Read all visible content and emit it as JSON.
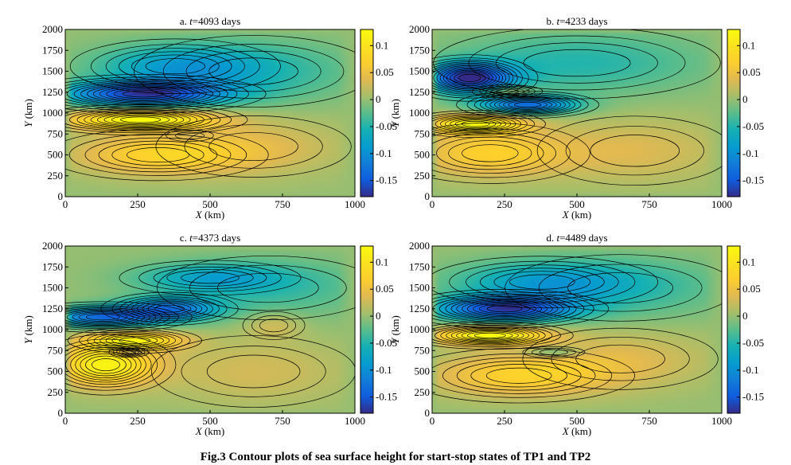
{
  "figure": {
    "caption": "Fig.3 Contour plots of sea surface height for start-stop states of TP1 and TP2"
  },
  "chart_data": [
    {
      "type": "heatmap",
      "panel": "a",
      "title_prefix": "a. ",
      "title_var": "t",
      "title_value": "=4093 days",
      "xlabel_var": "X",
      "xlabel_unit": " (km)",
      "ylabel_var": "Y",
      "ylabel_unit": " (km)",
      "xlim": [
        0,
        1000
      ],
      "ylim": [
        0,
        2000
      ],
      "xticks": [
        0,
        250,
        500,
        750,
        1000
      ],
      "yticks": [
        0,
        250,
        500,
        750,
        1000,
        1250,
        1500,
        1750,
        2000
      ],
      "colorbar": {
        "min": -0.18,
        "max": 0.13,
        "ticks": [
          0.1,
          0.05,
          0,
          -0.05,
          -0.1,
          -0.15
        ],
        "ticklabels": [
          "0.1",
          "0.05",
          "0",
          "-0.05",
          "-0.1",
          "-0.15"
        ]
      },
      "features": [
        {
          "x": 270,
          "y": 1230,
          "sx": 200,
          "sy": 110,
          "amp": -0.16
        },
        {
          "x": 380,
          "y": 1560,
          "sx": 200,
          "sy": 180,
          "amp": -0.07
        },
        {
          "x": 650,
          "y": 1500,
          "sx": 250,
          "sy": 260,
          "amp": -0.045
        },
        {
          "x": 260,
          "y": 920,
          "sx": 180,
          "sy": 90,
          "amp": 0.13
        },
        {
          "x": 320,
          "y": 500,
          "sx": 210,
          "sy": 170,
          "amp": 0.07
        },
        {
          "x": 650,
          "y": 600,
          "sx": 220,
          "sy": 240,
          "amp": 0.035
        },
        {
          "x": 430,
          "y": 730,
          "sx": 60,
          "sy": 50,
          "amp": -0.02
        }
      ]
    },
    {
      "type": "heatmap",
      "panel": "b",
      "title_prefix": "b. ",
      "title_var": "t",
      "title_value": "=4233 days",
      "xlabel_var": "X",
      "xlabel_unit": " (km)",
      "ylabel_var": "Y",
      "ylabel_unit": " (km)",
      "xlim": [
        0,
        1000
      ],
      "ylim": [
        0,
        2000
      ],
      "xticks": [
        0,
        250,
        500,
        750,
        1000
      ],
      "yticks": [
        0,
        250,
        500,
        750,
        1000,
        1250,
        1500,
        1750,
        2000
      ],
      "colorbar": {
        "min": -0.18,
        "max": 0.13,
        "ticks": [
          0.1,
          0.05,
          0,
          -0.05,
          -0.1,
          -0.15
        ],
        "ticklabels": [
          "0.1",
          "0.05",
          "0",
          "-0.05",
          "-0.1",
          "-0.15"
        ]
      },
      "features": [
        {
          "x": 130,
          "y": 1420,
          "sx": 110,
          "sy": 130,
          "amp": -0.17
        },
        {
          "x": 330,
          "y": 1100,
          "sx": 120,
          "sy": 80,
          "amp": -0.13
        },
        {
          "x": 260,
          "y": 1260,
          "sx": 70,
          "sy": 45,
          "amp": 0.06
        },
        {
          "x": 500,
          "y": 1600,
          "sx": 300,
          "sy": 260,
          "amp": -0.05
        },
        {
          "x": 150,
          "y": 870,
          "sx": 120,
          "sy": 80,
          "amp": 0.12
        },
        {
          "x": 200,
          "y": 520,
          "sx": 190,
          "sy": 200,
          "amp": 0.07
        },
        {
          "x": 700,
          "y": 550,
          "sx": 220,
          "sy": 270,
          "amp": 0.035
        }
      ]
    },
    {
      "type": "heatmap",
      "panel": "c",
      "title_prefix": "c. ",
      "title_var": "t",
      "title_value": "=4373 days",
      "xlabel_var": "X",
      "xlabel_unit": " (km)",
      "ylabel_var": "Y",
      "ylabel_unit": " (km)",
      "xlim": [
        0,
        1000
      ],
      "ylim": [
        0,
        2000
      ],
      "xticks": [
        0,
        250,
        500,
        750,
        1000
      ],
      "yticks": [
        0,
        250,
        500,
        750,
        1000,
        1250,
        1500,
        1750,
        2000
      ],
      "colorbar": {
        "min": -0.18,
        "max": 0.13,
        "ticks": [
          0.1,
          0.05,
          0,
          -0.05,
          -0.1,
          -0.15
        ],
        "ticklabels": [
          "0.1",
          "0.05",
          "0",
          "-0.05",
          "-0.1",
          "-0.15"
        ]
      },
      "features": [
        {
          "x": 130,
          "y": 1150,
          "sx": 150,
          "sy": 90,
          "amp": -0.13
        },
        {
          "x": 360,
          "y": 1250,
          "sx": 120,
          "sy": 100,
          "amp": -0.11
        },
        {
          "x": 500,
          "y": 1620,
          "sx": 180,
          "sy": 120,
          "amp": -0.06
        },
        {
          "x": 700,
          "y": 1500,
          "sx": 250,
          "sy": 250,
          "amp": -0.04
        },
        {
          "x": 140,
          "y": 580,
          "sx": 120,
          "sy": 180,
          "amp": 0.12
        },
        {
          "x": 240,
          "y": 870,
          "sx": 120,
          "sy": 80,
          "amp": 0.1
        },
        {
          "x": 220,
          "y": 730,
          "sx": 40,
          "sy": 35,
          "amp": -0.06
        },
        {
          "x": 720,
          "y": 1050,
          "sx": 70,
          "sy": 110,
          "amp": 0.03
        },
        {
          "x": 650,
          "y": 500,
          "sx": 230,
          "sy": 280,
          "amp": 0.03
        }
      ]
    },
    {
      "type": "heatmap",
      "panel": "d",
      "title_prefix": "d. ",
      "title_var": "t",
      "title_value": "=4489 days",
      "xlabel_var": "X",
      "xlabel_unit": " (km)",
      "ylabel_var": "Y",
      "ylabel_unit": " (km)",
      "xlim": [
        0,
        1000
      ],
      "ylim": [
        0,
        2000
      ],
      "xticks": [
        0,
        250,
        500,
        750,
        1000
      ],
      "yticks": [
        0,
        250,
        500,
        750,
        1000,
        1250,
        1500,
        1750,
        2000
      ],
      "colorbar": {
        "min": -0.18,
        "max": 0.13,
        "ticks": [
          0.1,
          0.05,
          0,
          -0.05,
          -0.1,
          -0.15
        ],
        "ticklabels": [
          "0.1",
          "0.05",
          "0",
          "-0.05",
          "-0.1",
          "-0.15"
        ]
      },
      "features": [
        {
          "x": 250,
          "y": 1250,
          "sx": 170,
          "sy": 110,
          "amp": -0.16
        },
        {
          "x": 380,
          "y": 1570,
          "sx": 220,
          "sy": 170,
          "amp": -0.07
        },
        {
          "x": 650,
          "y": 1500,
          "sx": 260,
          "sy": 260,
          "amp": -0.04
        },
        {
          "x": 200,
          "y": 930,
          "sx": 140,
          "sy": 80,
          "amp": 0.13
        },
        {
          "x": 300,
          "y": 450,
          "sx": 220,
          "sy": 180,
          "amp": 0.07
        },
        {
          "x": 420,
          "y": 730,
          "sx": 70,
          "sy": 45,
          "amp": -0.04
        },
        {
          "x": 650,
          "y": 650,
          "sx": 220,
          "sy": 240,
          "amp": 0.035
        }
      ]
    }
  ]
}
